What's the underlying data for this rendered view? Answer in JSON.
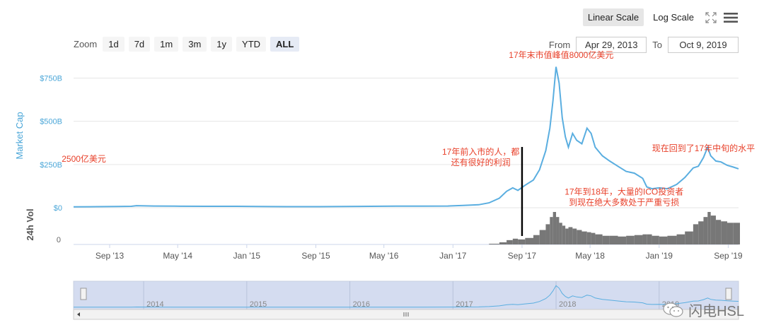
{
  "toolbar": {
    "linear_scale": "Linear Scale",
    "log_scale": "Log Scale"
  },
  "zoom": {
    "label": "Zoom",
    "buttons": [
      "1d",
      "7d",
      "1m",
      "3m",
      "1y",
      "YTD",
      "ALL"
    ],
    "active": "ALL"
  },
  "range": {
    "from_label": "From",
    "from_value": "Apr 29, 2013",
    "to_label": "To",
    "to_value": "Oct 9, 2019"
  },
  "colors": {
    "line": "#5aaee0",
    "axis_label": "#4aa6d8",
    "volume": "#777777",
    "navigator_fill": "#d4dcf0",
    "annotation": "#e8402a",
    "marker": "#000000"
  },
  "watermark": "闪电HSL",
  "chart_data": {
    "type": "line",
    "title": "",
    "ylabel": "Market Cap",
    "ylabel_volume": "24h Vol",
    "y_ticks": [
      "$0",
      "$250B",
      "$500B",
      "$750B"
    ],
    "y_tick_values": [
      0,
      250,
      500,
      750
    ],
    "volume_ticks": [
      "0"
    ],
    "ylim": [
      0,
      850
    ],
    "x_ticks": [
      "Sep '13",
      "May '14",
      "Jan '15",
      "Sep '15",
      "May '16",
      "Jan '17",
      "Sep '17",
      "May '18",
      "Jan '19",
      "Sep '19"
    ],
    "x_tick_values": [
      2013.67,
      2014.33,
      2015.0,
      2015.67,
      2016.33,
      2017.0,
      2017.67,
      2018.33,
      2019.0,
      2019.67
    ],
    "xlim": [
      2013.32,
      2019.77
    ],
    "navigator_years": [
      "2014",
      "2015",
      "2016",
      "2017",
      "2018",
      "2019"
    ],
    "navigator_year_values": [
      2014,
      2015,
      2016,
      2017,
      2018,
      2019
    ],
    "series": [
      {
        "x": [
          2013.32,
          2013.55,
          2013.75,
          2013.88,
          2013.93,
          2014.1,
          2014.3,
          2014.6,
          2014.9,
          2015.1,
          2015.4,
          2015.7,
          2015.95,
          2016.2,
          2016.45,
          2016.7,
          2016.95,
          2017.1,
          2017.25,
          2017.35,
          2017.45,
          2017.52,
          2017.58,
          2017.63,
          2017.7,
          2017.78,
          2017.84,
          2017.9,
          2017.94,
          2017.97,
          2018.0,
          2018.03,
          2018.06,
          2018.09,
          2018.12,
          2018.16,
          2018.2,
          2018.25,
          2018.3,
          2018.34,
          2018.38,
          2018.45,
          2018.52,
          2018.6,
          2018.68,
          2018.76,
          2018.84,
          2018.88,
          2018.93,
          2019.0,
          2019.08,
          2019.17,
          2019.25,
          2019.33,
          2019.38,
          2019.43,
          2019.47,
          2019.5,
          2019.55,
          2019.6,
          2019.66,
          2019.72,
          2019.77
        ],
        "y": [
          5,
          6,
          7,
          8,
          12,
          10,
          9,
          8,
          8,
          7,
          6,
          6,
          7,
          8,
          9,
          9,
          10,
          13,
          17,
          28,
          55,
          95,
          115,
          100,
          130,
          160,
          220,
          330,
          460,
          620,
          815,
          720,
          520,
          410,
          350,
          430,
          390,
          370,
          460,
          430,
          350,
          300,
          270,
          240,
          210,
          200,
          170,
          120,
          110,
          115,
          110,
          135,
          175,
          230,
          240,
          290,
          350,
          300,
          270,
          265,
          245,
          235,
          225
        ],
        "volume": [
          0,
          0,
          0,
          0,
          0,
          0,
          0,
          0,
          0,
          0,
          0,
          0,
          0,
          0,
          0,
          0,
          0,
          0,
          0,
          1,
          3,
          6,
          8,
          7,
          9,
          13,
          20,
          28,
          38,
          45,
          38,
          30,
          26,
          22,
          24,
          22,
          20,
          18,
          17,
          16,
          14,
          12,
          12,
          11,
          12,
          13,
          14,
          14,
          12,
          11,
          12,
          14,
          18,
          28,
          32,
          38,
          45,
          40,
          34,
          32,
          30,
          30,
          30
        ]
      }
    ],
    "annotations": [
      {
        "text": "2500亿美元",
        "x": 2013.42,
        "y": 250
      },
      {
        "text": "17年末市值峰值8000亿美元",
        "x": 2018.05,
        "y": 850
      },
      {
        "text": "17年前入市的人，都\n还有很好的利润",
        "x": 2017.27,
        "y": 290
      },
      {
        "text": "17年到18年，大量的ICO投资者\n到现在绝大多数处于严重亏损",
        "x": 2018.66,
        "y": 60
      },
      {
        "text": "现在回到了17年中旬的水平",
        "x": 2019.43,
        "y": 310
      }
    ],
    "marker_line_x": 2017.67
  }
}
